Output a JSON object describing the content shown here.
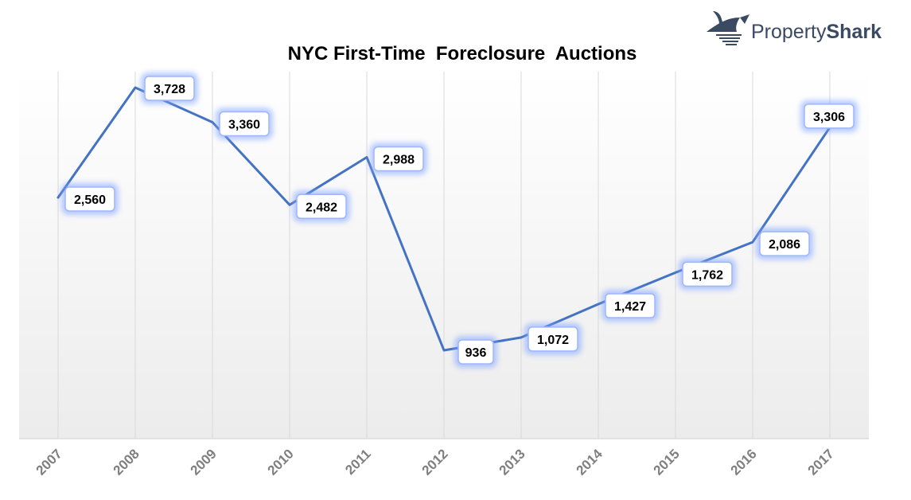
{
  "brand": {
    "name_part1": "Property",
    "name_part2": "Shark",
    "logo_icon": "shark-fin-icon",
    "color": "#3a4a63"
  },
  "chart_data": {
    "type": "line",
    "title": "NYC First-Time  Foreclosure  Auctions",
    "xlabel": "",
    "ylabel": "",
    "categories": [
      "2007",
      "2008",
      "2009",
      "2010",
      "2011",
      "2012",
      "2013",
      "2014",
      "2015",
      "2016",
      "2017"
    ],
    "series": [
      {
        "values": [
          2560,
          3728,
          3360,
          2482,
          2988,
          936,
          1072,
          1427,
          1762,
          2086,
          3306
        ],
        "labels": [
          "2,560",
          "3,728",
          "3,360",
          "2,482",
          "2,988",
          "936",
          "1,072",
          "1,427",
          "1,762",
          "2,086",
          "3,306"
        ],
        "color": "#4472c4"
      }
    ],
    "ylim": [
      0,
      4200
    ],
    "grid": "vertical",
    "legend": "none",
    "label_glow_color": "#7da2ff"
  }
}
